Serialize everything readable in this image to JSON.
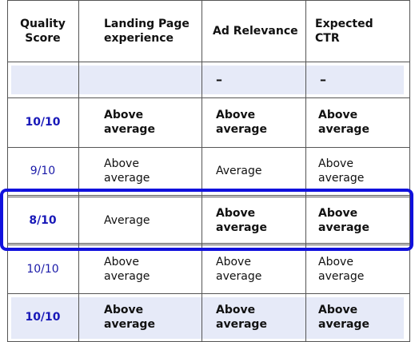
{
  "headers": [
    "Quality Score",
    "Landing Page experience",
    "Ad Relevance",
    "Expected CTR"
  ],
  "header_lines": [
    [
      "Quality",
      "Score"
    ],
    [
      "Landing Page",
      "experience"
    ],
    [
      "Ad Relevance"
    ],
    [
      "Expected",
      "CTR"
    ]
  ],
  "band_row": [
    "",
    "",
    "–",
    "–"
  ],
  "rows": [
    {
      "score": "10/10",
      "landing": [
        "Above",
        "average"
      ],
      "relevance": [
        "Above",
        "average"
      ],
      "ctr": [
        "Above",
        "average"
      ],
      "bold": [
        true,
        true,
        true,
        true
      ]
    },
    {
      "score": "9/10",
      "landing": [
        "Above",
        "average"
      ],
      "relevance": [
        "Average"
      ],
      "ctr": [
        "Above",
        "average"
      ],
      "bold": [
        false,
        false,
        false,
        false
      ]
    },
    {
      "score": "8/10",
      "landing": [
        "Average"
      ],
      "relevance": [
        "Above",
        "average"
      ],
      "ctr": [
        "Above",
        "average"
      ],
      "bold": [
        true,
        false,
        true,
        true
      ],
      "highlighted": true
    },
    {
      "score": "10/10",
      "landing": [
        "Above",
        "average"
      ],
      "relevance": [
        "Above",
        "average"
      ],
      "ctr": [
        "Above",
        "average"
      ],
      "bold": [
        false,
        false,
        false,
        false
      ]
    },
    {
      "score": "10/10",
      "landing": [
        "Above",
        "average"
      ],
      "relevance": [
        "Above",
        "average"
      ],
      "ctr": [
        "Above",
        "average"
      ],
      "bold": [
        true,
        true,
        true,
        true
      ],
      "shaded": true
    }
  ],
  "colors": {
    "highlight_border": "#1111dd",
    "score_text": "#1818b8",
    "band": "#e6eaf8"
  }
}
